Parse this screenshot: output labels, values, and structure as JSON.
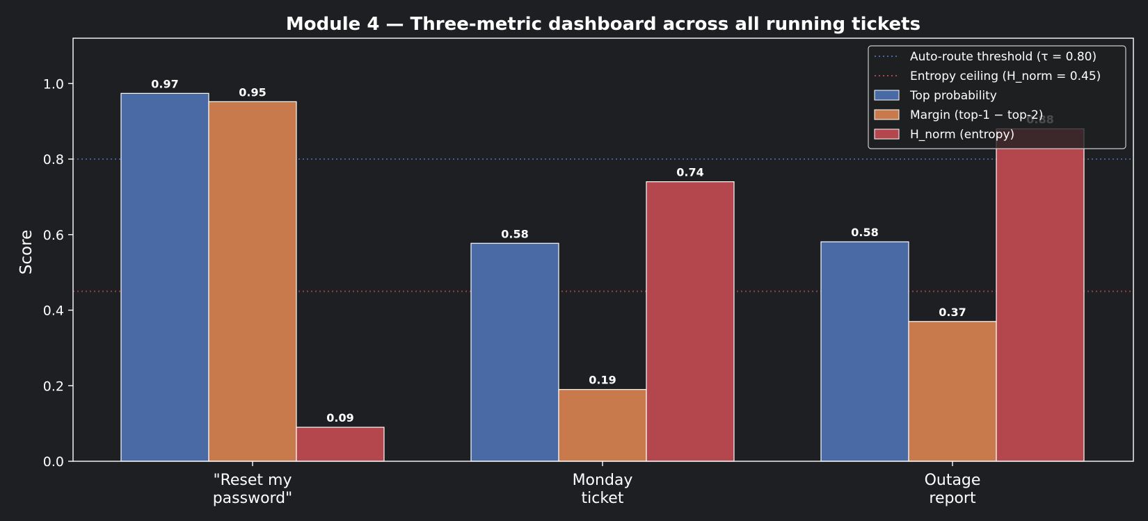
{
  "chart_data": {
    "type": "bar",
    "title": "Module 4 — Three-metric dashboard across all running tickets",
    "xlabel": "",
    "ylabel": "Score",
    "ylim": [
      0,
      1.12
    ],
    "yticks": [
      "0.0",
      "0.2",
      "0.4",
      "0.6",
      "0.8",
      "1.0"
    ],
    "categories": [
      [
        "\"Reset my",
        "password\""
      ],
      [
        "Monday",
        "ticket"
      ],
      [
        "Outage",
        "report"
      ]
    ],
    "series": [
      {
        "name": "Top probability",
        "values": [
          0.974,
          0.577,
          0.581
        ],
        "labels": [
          "0.97",
          "0.58",
          "0.58"
        ],
        "color": "#4a6aa5"
      },
      {
        "name": "Margin (top-1 − top-2)",
        "values": [
          0.952,
          0.19,
          0.37
        ],
        "labels": [
          "0.95",
          "0.19",
          "0.37"
        ],
        "color": "#c87a4c"
      },
      {
        "name": "H_norm (entropy)",
        "values": [
          0.09,
          0.74,
          0.88
        ],
        "labels": [
          "0.09",
          "0.74",
          "0.88"
        ],
        "color": "#b3474d"
      }
    ],
    "reference_lines": [
      {
        "name": "Auto-route threshold (τ = 0.80)",
        "y": 0.8,
        "color": "#4a6aa5"
      },
      {
        "name": "Entropy ceiling (H_norm = 0.45)",
        "y": 0.45,
        "color": "#b3474d"
      }
    ],
    "grid": false,
    "legend_position": "top-right",
    "colors": {
      "background": "#1e1f22",
      "axes": "#ffffff",
      "text": "#ffffff"
    }
  }
}
